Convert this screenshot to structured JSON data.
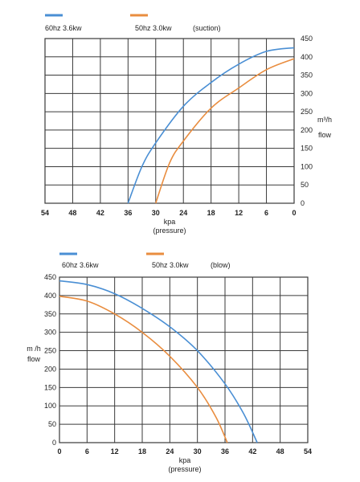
{
  "colors": {
    "series_blue": "#4a8fd4",
    "series_orange": "#e98d3f",
    "grid": "#3a3a3a"
  },
  "chart_data": [
    {
      "type": "line",
      "legend": [
        {
          "label": "60hz 3.6kw",
          "color": "#4a8fd4"
        },
        {
          "label": "50hz  3.0kw",
          "color": "#e98d3f"
        }
      ],
      "legend_note": "(suction)",
      "x_ticks": [
        "54",
        "48",
        "42",
        "36",
        "30",
        "24",
        "18",
        "12",
        "6",
        "0"
      ],
      "y_ticks": [
        "0",
        "50",
        "100",
        "150",
        "200",
        "250",
        "300",
        "350",
        "400",
        "450"
      ],
      "xlabel": "kpa",
      "xlabel2": "(pressure)",
      "ylabel_unit": "m³/h",
      "ylabel_name": "flow",
      "xlim": [
        54,
        0
      ],
      "ylim": [
        0,
        450
      ],
      "x_reversed": true,
      "grid": true,
      "series": [
        {
          "name": "60hz 3.6kw",
          "color": "#4a8fd4",
          "x": [
            36,
            33,
            30,
            24,
            18,
            12,
            6,
            0
          ],
          "y": [
            0,
            100,
            165,
            265,
            330,
            380,
            415,
            425
          ]
        },
        {
          "name": "50hz  3.0kw",
          "color": "#e98d3f",
          "x": [
            30,
            27,
            24,
            18,
            12,
            6,
            0
          ],
          "y": [
            0,
            110,
            170,
            260,
            315,
            365,
            395
          ]
        }
      ]
    },
    {
      "type": "line",
      "legend": [
        {
          "label": "60hz 3.6kw",
          "color": "#4a8fd4"
        },
        {
          "label": "50hz  3.0kw",
          "color": "#e98d3f"
        }
      ],
      "legend_note": "(blow)",
      "x_ticks": [
        "0",
        "6",
        "12",
        "18",
        "24",
        "30",
        "36",
        "42",
        "48",
        "54"
      ],
      "y_ticks": [
        "0",
        "50",
        "100",
        "150",
        "200",
        "250",
        "300",
        "350",
        "400",
        "450"
      ],
      "xlabel": "kpa",
      "xlabel2": "(pressure)",
      "ylabel_unit": "m /h",
      "ylabel_name": "flow",
      "xlim": [
        0,
        54
      ],
      "ylim": [
        0,
        450
      ],
      "x_reversed": false,
      "grid": true,
      "series": [
        {
          "name": "60hz 3.6kw",
          "color": "#4a8fd4",
          "x": [
            0,
            6,
            12,
            18,
            24,
            30,
            36,
            40,
            43
          ],
          "y": [
            440,
            430,
            405,
            365,
            315,
            250,
            160,
            80,
            0
          ]
        },
        {
          "name": "50hz  3.0kw",
          "color": "#e98d3f",
          "x": [
            0,
            6,
            12,
            18,
            24,
            30,
            34,
            36.5
          ],
          "y": [
            398,
            385,
            350,
            300,
            235,
            150,
            70,
            0
          ]
        }
      ]
    }
  ]
}
